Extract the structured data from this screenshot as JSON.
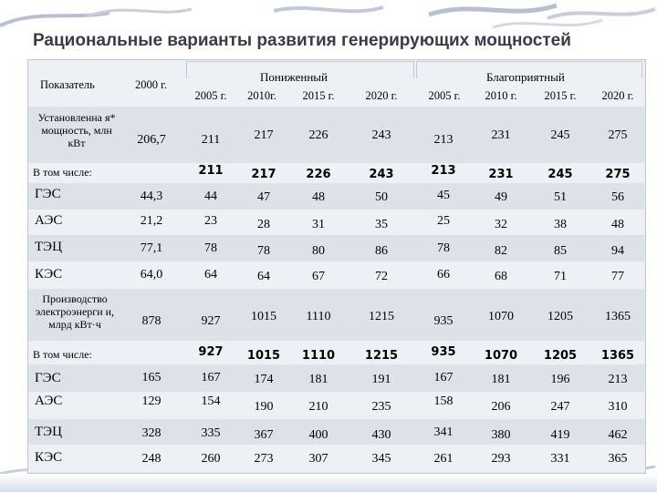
{
  "title": "Рациональные варианты развития генерирующих мощностей",
  "header": {
    "indicator": "Показатель",
    "base_year": "2000 г.",
    "scenario_low": "Пониженный",
    "scenario_high": "Благоприятный",
    "years_low": [
      "2005 г.",
      "2010г.",
      "2015 г.",
      "2020 г."
    ],
    "years_high": [
      "2005 г.",
      "2010 г.",
      "2015 г.",
      "2020 г."
    ]
  },
  "rows": [
    {
      "label": "Установленна я* мощность, млн кВт",
      "values": [
        "206,7",
        "211",
        "217",
        "226",
        "243",
        "213",
        "231",
        "245",
        "275"
      ]
    },
    {
      "label": "В том числе:",
      "values": [
        "",
        "211",
        "217",
        "226",
        "243",
        "213",
        "231",
        "245",
        "275"
      ]
    },
    {
      "label": "ГЭС",
      "values": [
        "44,3",
        "44",
        "47",
        "48",
        "50",
        "45",
        "49",
        "51",
        "56"
      ]
    },
    {
      "label": "АЭС",
      "values": [
        "21,2",
        "23",
        "28",
        "31",
        "35",
        "25",
        "32",
        "38",
        "48"
      ]
    },
    {
      "label": "ТЭЦ",
      "values": [
        "77,1",
        "78",
        "78",
        "80",
        "86",
        "78",
        "82",
        "85",
        "94"
      ]
    },
    {
      "label": "КЭС",
      "values": [
        "64,0",
        "64",
        "64",
        "67",
        "72",
        "66",
        "68",
        "71",
        "77"
      ]
    },
    {
      "label": "Производство электроэнерги и, млрд кВт·ч",
      "values": [
        "878",
        "927",
        "1015",
        "1110",
        "1215",
        "935",
        "1070",
        "1205",
        "1365"
      ]
    },
    {
      "label": "В том числе:",
      "values": [
        "",
        "927",
        "1015",
        "1110",
        "1215",
        "935",
        "1070",
        "1205",
        "1365"
      ]
    },
    {
      "label": "ГЭС",
      "values": [
        "165",
        "167",
        "174",
        "181",
        "191",
        "167",
        "181",
        "196",
        "213"
      ]
    },
    {
      "label": "АЭС",
      "values": [
        "129",
        "154",
        "190",
        "210",
        "235",
        "158",
        "206",
        "247",
        "310"
      ]
    },
    {
      "label": "ТЭЦ",
      "values": [
        "328",
        "335",
        "367",
        "400",
        "430",
        "341",
        "380",
        "419",
        "462"
      ]
    },
    {
      "label": "КЭС",
      "values": [
        "248",
        "260",
        "273",
        "307",
        "345",
        "261",
        "293",
        "331",
        "365"
      ]
    }
  ]
}
